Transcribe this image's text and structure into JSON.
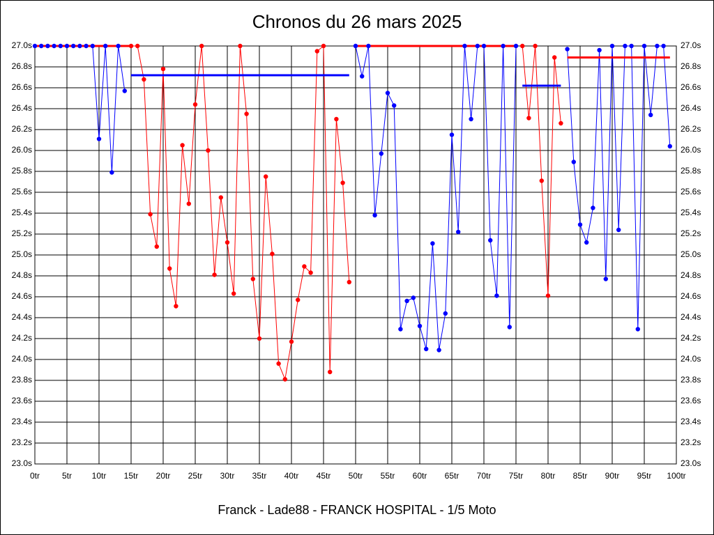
{
  "chart_data": {
    "type": "line",
    "title": "Chronos du 26 mars 2025",
    "footer": "Franck - Lade88 - FRANCK HOSPITAL - 1/5 Moto",
    "xlim": [
      0,
      100
    ],
    "ylim": [
      23.0,
      27.0
    ],
    "grid": true,
    "xticks": [
      {
        "value": 0,
        "label": "0tr"
      },
      {
        "value": 5,
        "label": "5tr"
      },
      {
        "value": 10,
        "label": "10tr"
      },
      {
        "value": 15,
        "label": "15tr"
      },
      {
        "value": 20,
        "label": "20tr"
      },
      {
        "value": 25,
        "label": "25tr"
      },
      {
        "value": 30,
        "label": "30tr"
      },
      {
        "value": 35,
        "label": "35tr"
      },
      {
        "value": 40,
        "label": "40tr"
      },
      {
        "value": 45,
        "label": "45tr"
      },
      {
        "value": 50,
        "label": "50tr"
      },
      {
        "value": 55,
        "label": "55tr"
      },
      {
        "value": 60,
        "label": "60tr"
      },
      {
        "value": 65,
        "label": "65tr"
      },
      {
        "value": 70,
        "label": "70tr"
      },
      {
        "value": 75,
        "label": "75tr"
      },
      {
        "value": 80,
        "label": "80tr"
      },
      {
        "value": 85,
        "label": "85tr"
      },
      {
        "value": 90,
        "label": "90tr"
      },
      {
        "value": 95,
        "label": "95tr"
      },
      {
        "value": 100,
        "label": "100tr"
      }
    ],
    "yticks": [
      {
        "value": 23.0,
        "label": "23.0s"
      },
      {
        "value": 23.2,
        "label": "23.2s"
      },
      {
        "value": 23.4,
        "label": "23.4s"
      },
      {
        "value": 23.6,
        "label": "23.6s"
      },
      {
        "value": 23.8,
        "label": "23.8s"
      },
      {
        "value": 24.0,
        "label": "24.0s"
      },
      {
        "value": 24.2,
        "label": "24.2s"
      },
      {
        "value": 24.4,
        "label": "24.4s"
      },
      {
        "value": 24.6,
        "label": "24.6s"
      },
      {
        "value": 24.8,
        "label": "24.8s"
      },
      {
        "value": 25.0,
        "label": "25.0s"
      },
      {
        "value": 25.2,
        "label": "25.2s"
      },
      {
        "value": 25.4,
        "label": "25.4s"
      },
      {
        "value": 25.6,
        "label": "25.6s"
      },
      {
        "value": 25.8,
        "label": "25.8s"
      },
      {
        "value": 26.0,
        "label": "26.0s"
      },
      {
        "value": 26.2,
        "label": "26.2s"
      },
      {
        "value": 26.4,
        "label": "26.4s"
      },
      {
        "value": 26.6,
        "label": "26.6s"
      },
      {
        "value": 26.8,
        "label": "26.8s"
      },
      {
        "value": 27.0,
        "label": "27.0s"
      }
    ],
    "series": [
      {
        "color": "#0000ff",
        "x": [
          0,
          1,
          2,
          3,
          4,
          5,
          6,
          7,
          8,
          9,
          10,
          11,
          12,
          13,
          14
        ],
        "values": [
          27.0,
          27.0,
          27.0,
          27.0,
          27.0,
          27.0,
          27.0,
          27.0,
          27.0,
          27.0,
          26.11,
          27.0,
          25.79,
          27.0,
          26.57
        ]
      },
      {
        "color": "#ff0000",
        "x": [
          15,
          16,
          17,
          18,
          19,
          20,
          21,
          22,
          23,
          24,
          25,
          26,
          27,
          28,
          29,
          30,
          31,
          32,
          33,
          34,
          35,
          36,
          37,
          38,
          39,
          40,
          41,
          42,
          43,
          44,
          45,
          46,
          47,
          48,
          49
        ],
        "values": [
          27.0,
          27.0,
          26.68,
          25.39,
          25.08,
          26.78,
          24.87,
          24.51,
          26.05,
          25.49,
          26.44,
          27.0,
          26.0,
          24.81,
          25.55,
          25.12,
          24.63,
          27.0,
          26.35,
          24.77,
          24.2,
          25.75,
          25.01,
          23.96,
          23.81,
          24.17,
          24.57,
          24.89,
          24.83,
          26.95,
          27.0,
          23.88,
          26.3,
          25.69,
          24.74
        ]
      },
      {
        "color": "#0000ff",
        "x": [
          50,
          51,
          52,
          53,
          54,
          55,
          56,
          57,
          58,
          59,
          60,
          61,
          62,
          63,
          64,
          65,
          66,
          67,
          68,
          69,
          70,
          71,
          72,
          73,
          74,
          75
        ],
        "values": [
          27.0,
          26.71,
          27.0,
          25.38,
          25.97,
          26.55,
          26.43,
          24.29,
          24.56,
          24.59,
          24.32,
          24.1,
          25.11,
          24.09,
          24.44,
          26.15,
          25.22,
          27.0,
          26.3,
          27.0,
          27.0,
          25.14,
          24.61,
          27.0,
          24.31,
          27.0
        ]
      },
      {
        "color": "#ff0000",
        "x": [
          76,
          77,
          78,
          79,
          80,
          81,
          82
        ],
        "values": [
          27.0,
          26.31,
          27.0,
          25.71,
          24.61,
          26.89,
          26.26
        ]
      },
      {
        "color": "#0000ff",
        "x": [
          83,
          84,
          85,
          86,
          87,
          88,
          89,
          90,
          91,
          92,
          93,
          94,
          95,
          96,
          97,
          98,
          99
        ],
        "values": [
          26.97,
          25.89,
          25.29,
          25.12,
          25.45,
          26.96,
          24.77,
          27.0,
          25.24,
          27.0,
          27.0,
          24.29,
          27.0,
          26.34,
          27.0,
          27.0,
          26.04
        ]
      }
    ],
    "ref_lines": [
      {
        "color": "#ff0000",
        "x": [
          0,
          15
        ],
        "value": 27.0
      },
      {
        "color": "#0000ff",
        "x": [
          15,
          49
        ],
        "value": 26.72
      },
      {
        "color": "#ff0000",
        "x": [
          50,
          75
        ],
        "value": 27.0
      },
      {
        "color": "#0000ff",
        "x": [
          76,
          82
        ],
        "value": 26.62
      },
      {
        "color": "#ff0000",
        "x": [
          83,
          99
        ],
        "value": 26.89
      }
    ]
  }
}
